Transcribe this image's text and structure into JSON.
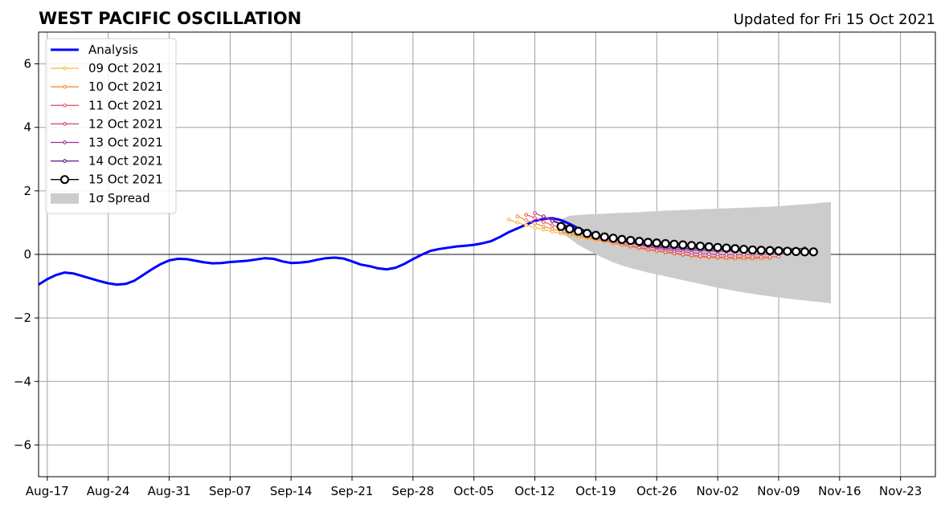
{
  "chart_data": {
    "type": "line",
    "title": "WEST PACIFIC OSCILLATION",
    "updated": "Updated for Fri 15 Oct 2021",
    "xlabel": "",
    "ylabel": "",
    "xlim": [
      "2021-08-16",
      "2021-11-27"
    ],
    "ylim": [
      -7,
      7
    ],
    "grid": true,
    "legend_position": "upper-left",
    "x_ticks": [
      "Aug-17",
      "Aug-24",
      "Aug-31",
      "Sep-07",
      "Sep-14",
      "Sep-21",
      "Sep-28",
      "Oct-05",
      "Oct-12",
      "Oct-19",
      "Oct-26",
      "Nov-02",
      "Nov-09",
      "Nov-16",
      "Nov-23"
    ],
    "x_tick_dates": [
      "2021-08-17",
      "2021-08-24",
      "2021-08-31",
      "2021-09-07",
      "2021-09-14",
      "2021-09-21",
      "2021-09-28",
      "2021-10-05",
      "2021-10-12",
      "2021-10-19",
      "2021-10-26",
      "2021-11-02",
      "2021-11-09",
      "2021-11-16",
      "2021-11-23"
    ],
    "y_ticks": [
      -6,
      -4,
      -2,
      0,
      2,
      4,
      6
    ],
    "y_tick_labels": [
      "−6",
      "−4",
      "−2",
      "0",
      "2",
      "4",
      "6"
    ],
    "analysis": {
      "name": "Analysis",
      "color": "#0000ff",
      "start": "2021-08-16",
      "values": [
        -0.95,
        -0.78,
        -0.65,
        -0.57,
        -0.6,
        -0.68,
        -0.76,
        -0.84,
        -0.91,
        -0.95,
        -0.93,
        -0.83,
        -0.65,
        -0.47,
        -0.31,
        -0.19,
        -0.14,
        -0.15,
        -0.2,
        -0.25,
        -0.28,
        -0.27,
        -0.24,
        -0.22,
        -0.2,
        -0.16,
        -0.12,
        -0.14,
        -0.22,
        -0.27,
        -0.26,
        -0.23,
        -0.17,
        -0.12,
        -0.1,
        -0.13,
        -0.22,
        -0.32,
        -0.37,
        -0.44,
        -0.47,
        -0.42,
        -0.3,
        -0.15,
        -0.01,
        0.11,
        0.17,
        0.21,
        0.25,
        0.27,
        0.3,
        0.35,
        0.42,
        0.55,
        0.7,
        0.82,
        0.94,
        1.05,
        1.12,
        1.14,
        1.08,
        0.96,
        0.82,
        0.71,
        0.62
      ]
    },
    "forecasts": [
      {
        "name": "09 Oct 2021",
        "color": "#f9b935",
        "start": "2021-10-09",
        "values": [
          1.1,
          1.0,
          0.92,
          0.84,
          0.78,
          0.72,
          0.66,
          0.6,
          0.55,
          0.5,
          0.45,
          0.4,
          0.35,
          0.3,
          0.25,
          0.2,
          0.16,
          0.12,
          0.08,
          0.04,
          0.0,
          -0.03,
          -0.06,
          -0.08,
          -0.1,
          -0.11,
          -0.12,
          -0.12,
          -0.12,
          -0.11
        ]
      },
      {
        "name": "10 Oct 2021",
        "color": "#f58a3d",
        "start": "2021-10-10",
        "values": [
          1.2,
          1.08,
          0.98,
          0.88,
          0.8,
          0.72,
          0.65,
          0.59,
          0.53,
          0.47,
          0.41,
          0.35,
          0.29,
          0.24,
          0.19,
          0.14,
          0.1,
          0.06,
          0.02,
          -0.02,
          -0.05,
          -0.08,
          -0.1,
          -0.12,
          -0.13,
          -0.14,
          -0.14,
          -0.14,
          -0.13,
          -0.12
        ]
      },
      {
        "name": "11 Oct 2021",
        "color": "#e45a6a",
        "start": "2021-10-11",
        "values": [
          1.25,
          1.15,
          1.02,
          0.92,
          0.83,
          0.75,
          0.67,
          0.6,
          0.53,
          0.46,
          0.4,
          0.34,
          0.28,
          0.22,
          0.17,
          0.12,
          0.08,
          0.04,
          0.0,
          -0.03,
          -0.05,
          -0.07,
          -0.08,
          -0.09,
          -0.09,
          -0.09,
          -0.09,
          -0.08,
          -0.08,
          -0.07
        ]
      },
      {
        "name": "12 Oct 2021",
        "color": "#c7437f",
        "start": "2021-10-12",
        "values": [
          1.3,
          1.18,
          1.06,
          0.96,
          0.86,
          0.77,
          0.69,
          0.61,
          0.54,
          0.47,
          0.41,
          0.35,
          0.29,
          0.24,
          0.19,
          0.15,
          0.11,
          0.08,
          0.05,
          0.03,
          0.01,
          0.0,
          -0.01,
          -0.01,
          -0.01,
          0.0,
          0.0,
          0.01,
          0.01,
          0.02
        ]
      },
      {
        "name": "13 Oct 2021",
        "color": "#9e2aa0",
        "start": "2021-10-13",
        "values": [
          1.2,
          1.08,
          0.97,
          0.87,
          0.78,
          0.7,
          0.62,
          0.55,
          0.48,
          0.42,
          0.36,
          0.31,
          0.27,
          0.23,
          0.2,
          0.17,
          0.15,
          0.13,
          0.12,
          0.11,
          0.1,
          0.1,
          0.1,
          0.1,
          0.11,
          0.11,
          0.12,
          0.12,
          0.13,
          0.13
        ]
      },
      {
        "name": "14 Oct 2021",
        "color": "#5a1591",
        "start": "2021-10-14",
        "values": [
          1.05,
          0.95,
          0.85,
          0.77,
          0.69,
          0.62,
          0.55,
          0.49,
          0.43,
          0.38,
          0.34,
          0.3,
          0.27,
          0.24,
          0.22,
          0.2,
          0.18,
          0.17,
          0.16,
          0.16,
          0.15,
          0.15,
          0.15,
          0.16,
          0.16,
          0.17,
          0.17,
          0.18,
          0.18,
          0.19
        ]
      },
      {
        "name": "15 Oct 2021",
        "color": "#000000",
        "start": "2021-10-15",
        "values": [
          0.88,
          0.8,
          0.73,
          0.66,
          0.6,
          0.55,
          0.51,
          0.47,
          0.44,
          0.41,
          0.38,
          0.36,
          0.34,
          0.32,
          0.3,
          0.28,
          0.26,
          0.24,
          0.22,
          0.2,
          0.18,
          0.16,
          0.14,
          0.13,
          0.12,
          0.11,
          0.1,
          0.09,
          0.08,
          0.08
        ]
      }
    ],
    "spread": {
      "name": "1σ Spread",
      "color": "#cccccc",
      "start": "2021-10-15",
      "upper": [
        1.1,
        1.22,
        1.24,
        1.26,
        1.27,
        1.28,
        1.3,
        1.31,
        1.32,
        1.33,
        1.35,
        1.36,
        1.38,
        1.39,
        1.4,
        1.41,
        1.42,
        1.43,
        1.44,
        1.45,
        1.46,
        1.47,
        1.48,
        1.49,
        1.5,
        1.52,
        1.54,
        1.56,
        1.58,
        1.6,
        1.63,
        1.65
      ],
      "lower": [
        0.7,
        0.5,
        0.3,
        0.15,
        0.0,
        -0.13,
        -0.25,
        -0.35,
        -0.43,
        -0.5,
        -0.57,
        -0.63,
        -0.69,
        -0.75,
        -0.81,
        -0.87,
        -0.93,
        -0.99,
        -1.05,
        -1.1,
        -1.15,
        -1.2,
        -1.24,
        -1.28,
        -1.32,
        -1.36,
        -1.39,
        -1.42,
        -1.45,
        -1.48,
        -1.51,
        -1.54
      ]
    }
  }
}
